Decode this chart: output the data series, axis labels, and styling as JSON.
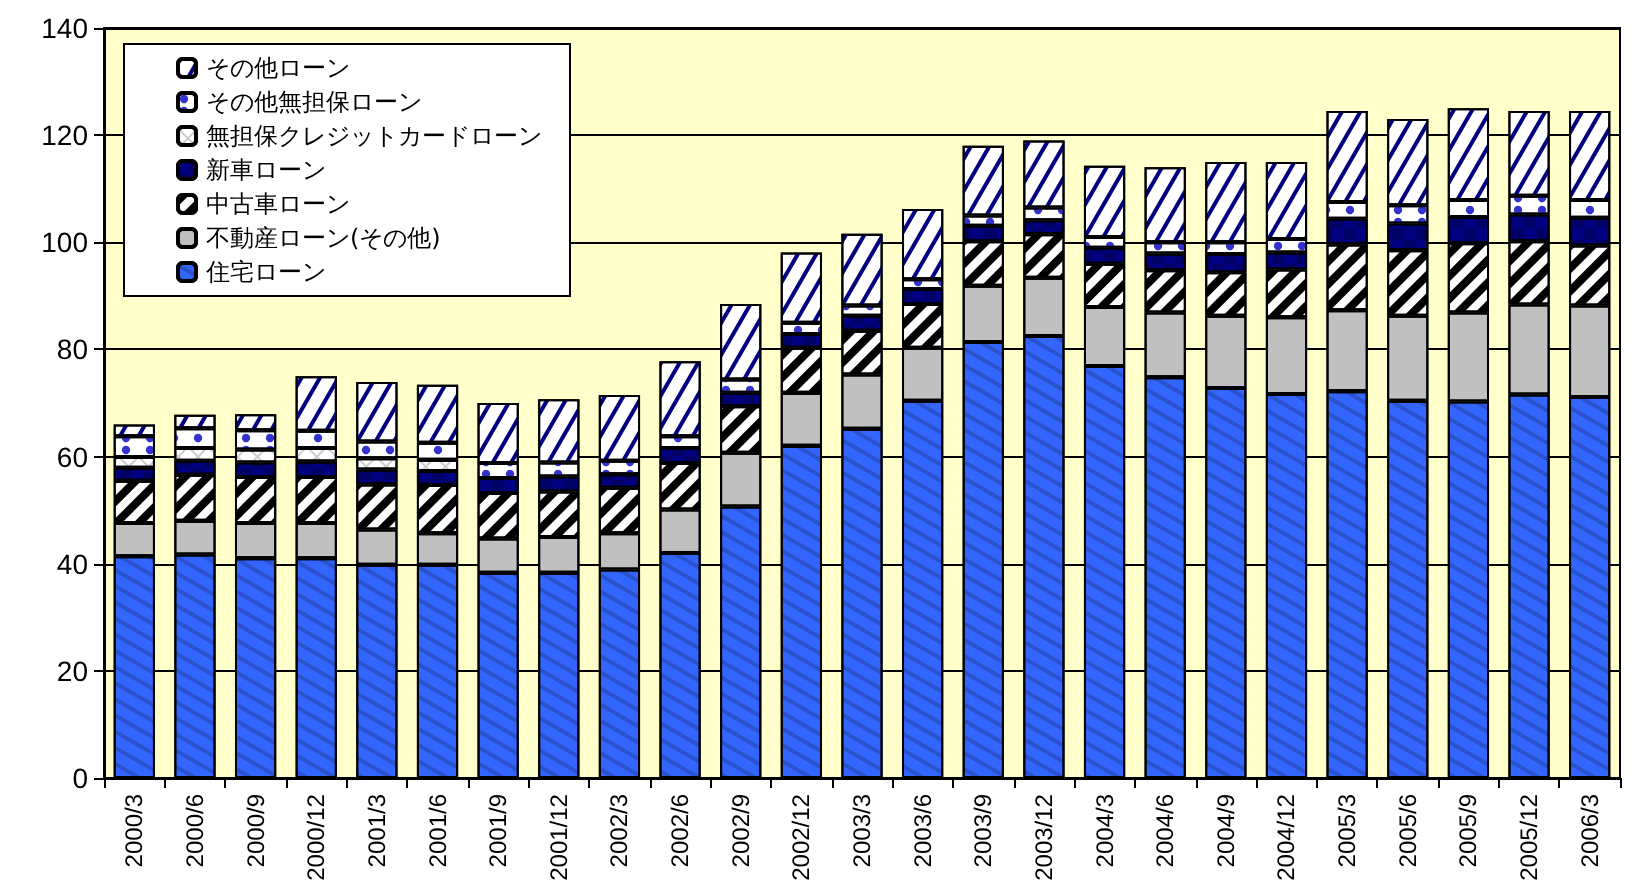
{
  "chart_data": {
    "type": "bar",
    "stacked": true,
    "categories": [
      "2000/3",
      "2000/6",
      "2000/9",
      "2000/12",
      "2001/3",
      "2001/6",
      "2001/9",
      "2001/12",
      "2002/3",
      "2002/6",
      "2002/9",
      "2002/12",
      "2003/3",
      "2003/6",
      "2003/9",
      "2003/12",
      "2004/3",
      "2004/6",
      "2004/9",
      "2004/12",
      "2005/3",
      "2005/6",
      "2005/9",
      "2005/12",
      "2006/3"
    ],
    "series": [
      {
        "name": "住宅ローン",
        "color": "#3366ff",
        "values": [
          41.4,
          41.7,
          41.0,
          41.0,
          39.8,
          39.8,
          38.3,
          38.3,
          38.9,
          42.0,
          50.7,
          62.0,
          65.2,
          70.4,
          81.4,
          82.5,
          76.9,
          74.8,
          72.8,
          71.7,
          72.2,
          70.4,
          70.3,
          71.6,
          71.1
        ]
      },
      {
        "name": "不動産ローン(その他)",
        "color": "#c0c0c0",
        "values": [
          6.2,
          6.3,
          6.6,
          6.6,
          6.6,
          5.9,
          6.4,
          6.7,
          6.8,
          8.1,
          10.0,
          9.9,
          10.1,
          9.9,
          10.5,
          10.9,
          11.0,
          12.1,
          13.5,
          14.3,
          15.1,
          15.9,
          16.6,
          16.8,
          17.1
        ]
      },
      {
        "name": "中古車ローン",
        "color": "#ffffff",
        "values": [
          7.9,
          8.6,
          8.6,
          8.6,
          8.4,
          9.0,
          8.5,
          8.5,
          8.5,
          8.7,
          8.7,
          8.4,
          8.2,
          8.2,
          8.3,
          8.1,
          8.1,
          7.9,
          8.1,
          8.9,
          12.3,
          12.2,
          12.9,
          11.8,
          11.2
        ]
      },
      {
        "name": "新車ローン",
        "color": "#000080",
        "values": [
          2.4,
          2.6,
          2.7,
          2.9,
          2.8,
          2.6,
          2.8,
          2.8,
          2.5,
          2.8,
          2.5,
          2.6,
          2.8,
          2.8,
          2.9,
          2.6,
          3.0,
          3.1,
          3.4,
          3.2,
          4.8,
          5.0,
          4.9,
          5.0,
          5.2
        ]
      },
      {
        "name": "無担保クレジットカードローン",
        "color": "#ffffff",
        "values": [
          2.0,
          2.4,
          2.4,
          2.5,
          2.1,
          2.1,
          null,
          null,
          null,
          null,
          null,
          null,
          null,
          null,
          null,
          null,
          null,
          null,
          null,
          null,
          null,
          null,
          null,
          null,
          null
        ]
      },
      {
        "name": "その他無担保ローン",
        "color": "#ffffff",
        "values": [
          3.9,
          3.7,
          3.6,
          3.2,
          3.1,
          3.2,
          2.8,
          2.6,
          2.5,
          2.2,
          2.5,
          2.1,
          1.9,
          1.8,
          1.9,
          2.4,
          2.0,
          2.1,
          2.2,
          2.5,
          3.1,
          3.4,
          3.2,
          3.5,
          3.3
        ]
      },
      {
        "name": "その他ローン",
        "color": "#ffffff",
        "values": [
          2.2,
          2.5,
          3.0,
          10.2,
          11.1,
          10.8,
          11.2,
          11.8,
          12.3,
          14.0,
          14.1,
          13.1,
          13.4,
          13.1,
          13.0,
          12.5,
          13.3,
          14.0,
          15.0,
          14.4,
          17.0,
          16.1,
          17.1,
          15.8,
          16.6
        ]
      }
    ],
    "ylim": [
      0,
      140
    ],
    "yticks": [
      0,
      20,
      40,
      60,
      80,
      100,
      120,
      140
    ],
    "grid": "y",
    "legend": "top left"
  }
}
